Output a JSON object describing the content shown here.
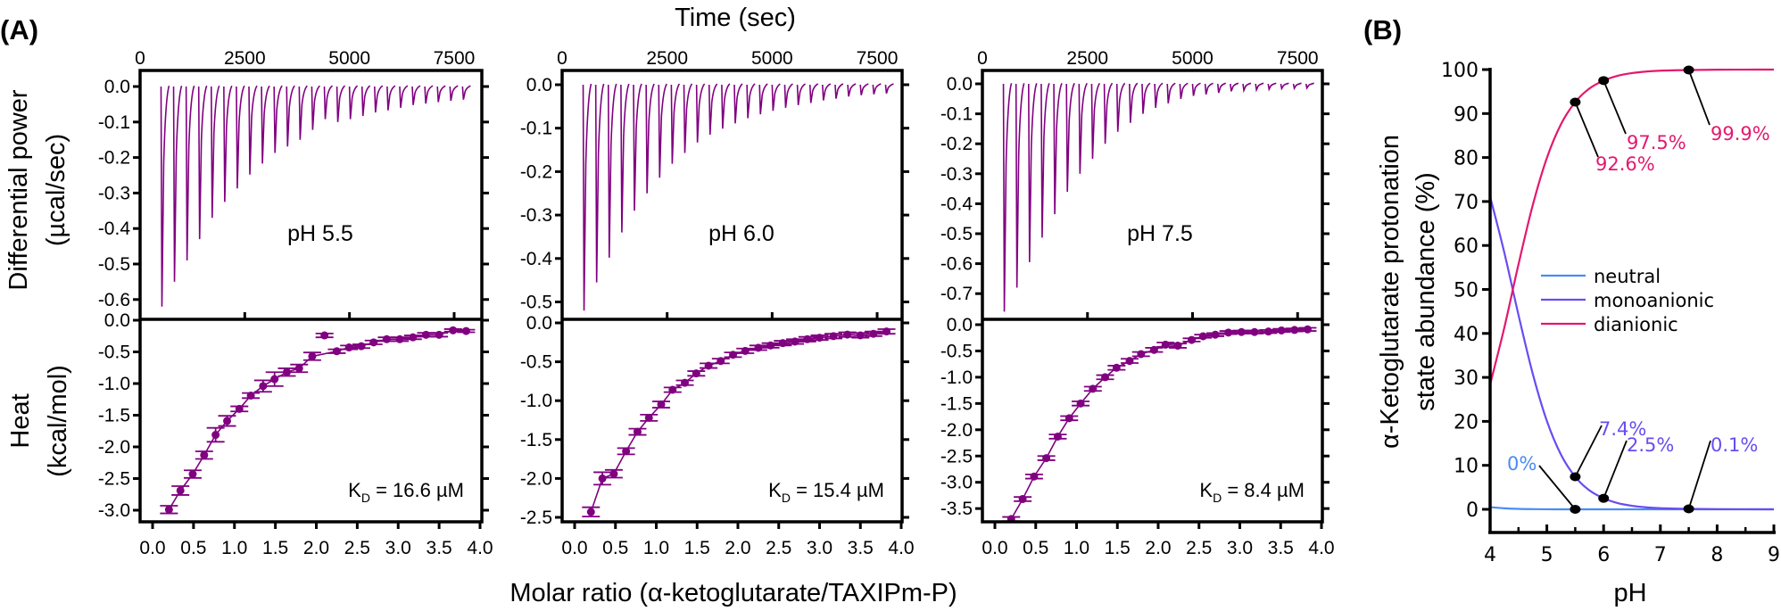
{
  "panel_labels": {
    "a": "(A)",
    "b": "(B)"
  },
  "itc_shared": {
    "time_label": "Time (sec)",
    "ylabel_top": [
      "Differential power",
      "(µcal/sec)"
    ],
    "ylabel_bottom": [
      "Heat",
      "(kcal/mol)"
    ],
    "xlabel_bottom": "Molar ratio (α-ketoglutarate/TAXIPm-P)",
    "color": "#800080"
  },
  "chart_data": [
    {
      "type": "line+scatter",
      "condition": "pH 5.5",
      "kd_symbol": "K",
      "kd_subscript": "D",
      "kd_value": "= 16.6 µM",
      "thermogram": {
        "x_ticks": [
          0,
          2500,
          5000,
          7500
        ],
        "y_ticks": [
          0.0,
          -0.1,
          -0.2,
          -0.3,
          -0.4,
          -0.5,
          -0.6
        ],
        "first_injection_sec": 500,
        "injection_interval_sec": 300,
        "peak_minima": [
          -0.62,
          -0.55,
          -0.49,
          -0.43,
          -0.37,
          -0.325,
          -0.287,
          -0.248,
          -0.217,
          -0.187,
          -0.169,
          -0.15,
          -0.122,
          -0.092,
          -0.1,
          -0.092,
          -0.083,
          -0.073,
          -0.067,
          -0.06,
          -0.052,
          -0.048,
          -0.044,
          -0.04,
          -0.037
        ]
      },
      "isotherm": {
        "x_ticks": [
          0.0,
          0.5,
          1.0,
          1.5,
          2.0,
          2.5,
          3.0,
          3.5,
          4.0
        ],
        "y_ticks": [
          0.0,
          -0.5,
          -1.0,
          -1.5,
          -2.0,
          -2.5,
          -3.0
        ],
        "x": [
          0.2,
          0.34,
          0.49,
          0.63,
          0.77,
          0.91,
          1.06,
          1.2,
          1.35,
          1.49,
          1.64,
          1.79,
          1.95,
          2.1,
          2.25,
          2.4,
          2.55,
          2.7,
          2.86,
          3.02,
          3.18,
          3.34,
          3.5,
          3.67,
          3.83
        ],
        "y": [
          -2.99,
          -2.69,
          -2.43,
          -2.13,
          -1.81,
          -1.59,
          -1.4,
          -1.19,
          -1.04,
          -0.93,
          -0.82,
          -0.76,
          -0.57,
          -0.24,
          -0.49,
          -0.43,
          -0.41,
          -0.35,
          -0.3,
          -0.3,
          -0.27,
          -0.23,
          -0.23,
          -0.16,
          -0.17
        ],
        "err": [
          0.06,
          0.07,
          0.06,
          0.06,
          0.11,
          0.08,
          0.04,
          0.04,
          0.09,
          0.11,
          0.06,
          0.06,
          0.06,
          0.03,
          0.03,
          0.03,
          0.03,
          0.03,
          0.03,
          0.03,
          0.03,
          0.03,
          0.03,
          0.02,
          0.02
        ],
        "fit_excludes_index": 13
      }
    },
    {
      "type": "line+scatter",
      "condition": "pH 6.0",
      "kd_symbol": "K",
      "kd_subscript": "D",
      "kd_value": "= 15.4 µM",
      "thermogram": {
        "x_ticks": [
          0,
          2500,
          5000,
          7500
        ],
        "y_ticks": [
          0.0,
          -0.1,
          -0.2,
          -0.3,
          -0.4,
          -0.5
        ],
        "first_injection_sec": 500,
        "injection_interval_sec": 300,
        "peak_minima": [
          -0.52,
          -0.455,
          -0.398,
          -0.34,
          -0.29,
          -0.25,
          -0.214,
          -0.182,
          -0.157,
          -0.133,
          -0.115,
          -0.101,
          -0.089,
          -0.077,
          -0.068,
          -0.06,
          -0.053,
          -0.047,
          -0.042,
          -0.036,
          -0.032,
          -0.027,
          -0.024,
          -0.022,
          -0.02
        ]
      },
      "isotherm": {
        "x_ticks": [
          0.0,
          0.5,
          1.0,
          1.5,
          2.0,
          2.5,
          3.0,
          3.5,
          4.0
        ],
        "y_ticks": [
          0.0,
          -0.5,
          -1.0,
          -1.5,
          -2.0,
          -2.5
        ],
        "x": [
          0.2,
          0.34,
          0.48,
          0.63,
          0.77,
          0.91,
          1.06,
          1.2,
          1.35,
          1.49,
          1.64,
          1.79,
          1.94,
          2.09,
          2.25,
          2.4,
          2.55,
          2.7,
          2.85,
          3.0,
          3.17,
          3.34,
          3.5,
          3.66,
          3.82
        ],
        "y": [
          -2.43,
          -2.0,
          -1.94,
          -1.65,
          -1.4,
          -1.22,
          -1.05,
          -0.86,
          -0.77,
          -0.65,
          -0.55,
          -0.49,
          -0.41,
          -0.36,
          -0.32,
          -0.29,
          -0.26,
          -0.24,
          -0.21,
          -0.19,
          -0.17,
          -0.15,
          -0.16,
          -0.14,
          -0.11
        ],
        "err": [
          0.06,
          0.08,
          0.05,
          0.04,
          0.04,
          0.04,
          0.04,
          0.03,
          0.03,
          0.03,
          0.03,
          0.03,
          0.03,
          0.03,
          0.03,
          0.03,
          0.03,
          0.03,
          0.03,
          0.03,
          0.03,
          0.03,
          0.03,
          0.03,
          0.03
        ],
        "fit_excludes_index": -1
      }
    },
    {
      "type": "line+scatter",
      "condition": "pH 7.5",
      "kd_symbol": "K",
      "kd_subscript": "D",
      "kd_value": "= 8.4 µM",
      "thermogram": {
        "x_ticks": [
          0,
          2500,
          5000,
          7500
        ],
        "y_ticks": [
          0.0,
          -0.1,
          -0.2,
          -0.3,
          -0.4,
          -0.5,
          -0.6,
          -0.7
        ],
        "first_injection_sec": 500,
        "injection_interval_sec": 300,
        "peak_minima": [
          -0.76,
          -0.68,
          -0.595,
          -0.513,
          -0.435,
          -0.36,
          -0.3,
          -0.25,
          -0.2,
          -0.16,
          -0.13,
          -0.1,
          -0.08,
          -0.065,
          -0.05,
          -0.04,
          -0.035,
          -0.03,
          -0.025,
          -0.022,
          -0.02,
          -0.018,
          -0.016,
          -0.015,
          -0.014
        ]
      },
      "isotherm": {
        "x_ticks": [
          0.0,
          0.5,
          1.0,
          1.5,
          2.0,
          2.5,
          3.0,
          3.5,
          4.0
        ],
        "y_ticks": [
          0.0,
          -0.5,
          -1.0,
          -1.5,
          -2.0,
          -2.5,
          -3.0,
          -3.5
        ],
        "x": [
          0.2,
          0.34,
          0.48,
          0.63,
          0.77,
          0.91,
          1.05,
          1.2,
          1.35,
          1.49,
          1.65,
          1.79,
          1.95,
          2.09,
          2.24,
          2.41,
          2.55,
          2.7,
          2.86,
          3.02,
          3.18,
          3.35,
          3.51,
          3.67,
          3.83
        ],
        "y": [
          -3.7,
          -3.32,
          -2.89,
          -2.54,
          -2.13,
          -1.78,
          -1.5,
          -1.22,
          -1.0,
          -0.82,
          -0.69,
          -0.56,
          -0.48,
          -0.38,
          -0.4,
          -0.29,
          -0.22,
          -0.19,
          -0.15,
          -0.14,
          -0.14,
          -0.13,
          -0.11,
          -0.1,
          -0.09
        ],
        "err": [
          0.04,
          0.04,
          0.04,
          0.04,
          0.04,
          0.04,
          0.04,
          0.04,
          0.04,
          0.04,
          0.04,
          0.04,
          0.04,
          0.04,
          0.04,
          0.03,
          0.03,
          0.03,
          0.03,
          0.03,
          0.03,
          0.03,
          0.03,
          0.03,
          0.03
        ],
        "fit_excludes_index": -1
      }
    },
    {
      "type": "line",
      "xlabel": "pH",
      "ylabel": [
        "α-Ketoglutarate protonation",
        "state abundance (%)"
      ],
      "xlim": [
        4,
        9
      ],
      "ylim": [
        -5,
        100
      ],
      "x_ticks": [
        4,
        5,
        6,
        7,
        8,
        9
      ],
      "y_ticks": [
        0,
        10,
        20,
        30,
        40,
        50,
        60,
        70,
        80,
        90,
        100
      ],
      "legend_position": "center-right",
      "x": [
        4,
        4.25,
        4.5,
        4.75,
        5,
        5.25,
        5.5,
        5.75,
        6,
        6.25,
        6.5,
        6.75,
        7,
        7.5,
        8,
        8.5,
        9
      ],
      "series": [
        {
          "name": "neutral",
          "color": "#4a8cf5",
          "values": [
            0.5,
            0.23,
            0.1,
            0.04,
            0.01,
            0,
            0,
            0,
            0,
            0,
            0,
            0,
            0,
            0,
            0,
            0,
            0
          ]
        },
        {
          "name": "monoanionic",
          "color": "#6a4cf0",
          "values": [
            71.1,
            58.4,
            44.2,
            30.9,
            20.1,
            12.4,
            7.4,
            4.3,
            2.5,
            1.4,
            0.8,
            0.45,
            0.25,
            0.1,
            0.03,
            0.01,
            0
          ]
        },
        {
          "name": "dianionic",
          "color": "#e3186e",
          "values": [
            28.4,
            41.3,
            55.7,
            69.1,
            79.9,
            87.6,
            92.6,
            95.7,
            97.5,
            98.6,
            99.2,
            99.55,
            99.75,
            99.9,
            99.97,
            99.99,
            100
          ]
        }
      ],
      "annotations": [
        {
          "series": "dianionic",
          "x": 5.5,
          "y": 92.6,
          "label": "92.6%"
        },
        {
          "series": "dianionic",
          "x": 6.0,
          "y": 97.5,
          "label": "97.5%"
        },
        {
          "series": "dianionic",
          "x": 7.5,
          "y": 99.9,
          "label": "99.9%"
        },
        {
          "series": "monoanionic",
          "x": 5.5,
          "y": 7.4,
          "label": "7.4%"
        },
        {
          "series": "monoanionic",
          "x": 6.0,
          "y": 2.5,
          "label": "2.5%"
        },
        {
          "series": "monoanionic",
          "x": 7.5,
          "y": 0.1,
          "label": "0.1%"
        },
        {
          "series": "neutral",
          "x": 5.5,
          "y": 0,
          "label": "0%"
        }
      ]
    }
  ]
}
